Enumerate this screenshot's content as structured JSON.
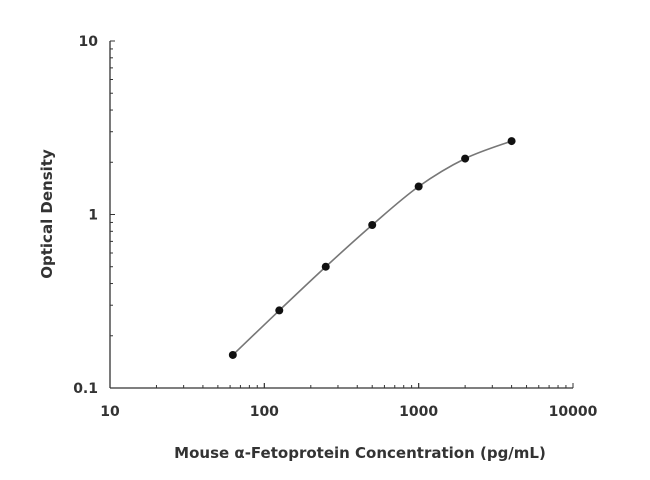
{
  "chart_data": {
    "type": "line",
    "title": "",
    "xlabel": "Mouse α-Fetoprotein Concentration (pg/mL)",
    "ylabel": "Optical Density",
    "xscale": "log",
    "yscale": "log",
    "xlim": [
      10,
      10000
    ],
    "ylim": [
      0.1,
      10
    ],
    "xticks": [
      "10",
      "100",
      "1000",
      "10000"
    ],
    "yticks": [
      "0.1",
      "1",
      "10"
    ],
    "grid": false,
    "series": [
      {
        "x": [
          62.5,
          125,
          250,
          500,
          1000,
          2000,
          4000
        ],
        "y": [
          0.155,
          0.28,
          0.5,
          0.87,
          1.45,
          2.1,
          2.65
        ]
      }
    ],
    "colors": {
      "line": "#777777",
      "marker": "#111111",
      "axis": "#333333"
    }
  }
}
